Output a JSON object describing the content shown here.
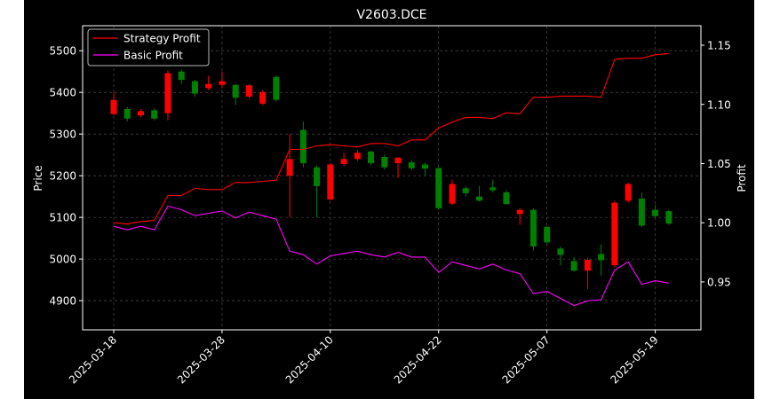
{
  "chart_data": {
    "type": "candlestick+line",
    "title": "V2603.DCE",
    "xlabel": "",
    "ylabel_left": "Price",
    "ylabel_right": "Profit",
    "ylim_left": [
      4830,
      5560
    ],
    "ylim_right": [
      0.9095,
      1.1665
    ],
    "yticks_left": [
      4900,
      5000,
      5100,
      5200,
      5300,
      5400,
      5500
    ],
    "yticks_right": [
      0.95,
      1.0,
      1.05,
      1.1,
      1.15
    ],
    "yticklabels_right": [
      "0.95",
      "1.00",
      "1.05",
      "1.10",
      "1.15"
    ],
    "xtick_labels": [
      {
        "label": "2025-03-18",
        "index": 0
      },
      {
        "label": "2025-03-28",
        "index": 8
      },
      {
        "label": "2025-04-10",
        "index": 16
      },
      {
        "label": "2025-04-22",
        "index": 24
      },
      {
        "label": "2025-05-07",
        "index": 32
      },
      {
        "label": "2025-05-19",
        "index": 40
      }
    ],
    "grid": true,
    "legend_position": "upper-left",
    "colors": {
      "up_candle": "#ff0000",
      "down_candle": "#008000",
      "strategy_line": "#ff0000",
      "basic_line": "#ff00ff",
      "background": "#000000",
      "text": "#ffffff"
    },
    "candles": [
      {
        "i": 0,
        "open": 5348,
        "close": 5382,
        "high": 5400,
        "low": 5345
      },
      {
        "i": 1,
        "open": 5360,
        "close": 5337,
        "high": 5365,
        "low": 5330
      },
      {
        "i": 2,
        "open": 5345,
        "close": 5355,
        "high": 5360,
        "low": 5340
      },
      {
        "i": 3,
        "open": 5357,
        "close": 5337,
        "high": 5362,
        "low": 5333
      },
      {
        "i": 4,
        "open": 5350,
        "close": 5446,
        "high": 5453,
        "low": 5333
      },
      {
        "i": 5,
        "open": 5450,
        "close": 5430,
        "high": 5455,
        "low": 5420
      },
      {
        "i": 6,
        "open": 5427,
        "close": 5397,
        "high": 5430,
        "low": 5390
      },
      {
        "i": 7,
        "open": 5410,
        "close": 5420,
        "high": 5440,
        "low": 5405
      },
      {
        "i": 8,
        "open": 5418,
        "close": 5427,
        "high": 5450,
        "low": 5410
      },
      {
        "i": 9,
        "open": 5418,
        "close": 5387,
        "high": 5420,
        "low": 5370
      },
      {
        "i": 10,
        "open": 5390,
        "close": 5417,
        "high": 5420,
        "low": 5385
      },
      {
        "i": 11,
        "open": 5373,
        "close": 5400,
        "high": 5405,
        "low": 5370
      },
      {
        "i": 12,
        "open": 5437,
        "close": 5382,
        "high": 5440,
        "low": 5378
      },
      {
        "i": 13,
        "open": 5200,
        "close": 5240,
        "high": 5300,
        "low": 5100
      },
      {
        "i": 14,
        "open": 5310,
        "close": 5230,
        "high": 5330,
        "low": 5220
      },
      {
        "i": 15,
        "open": 5220,
        "close": 5175,
        "high": 5225,
        "low": 5100
      },
      {
        "i": 16,
        "open": 5143,
        "close": 5227,
        "high": 5230,
        "low": 5140
      },
      {
        "i": 17,
        "open": 5228,
        "close": 5240,
        "high": 5255,
        "low": 5222
      },
      {
        "i": 18,
        "open": 5240,
        "close": 5255,
        "high": 5262,
        "low": 5235
      },
      {
        "i": 19,
        "open": 5258,
        "close": 5230,
        "high": 5260,
        "low": 5225
      },
      {
        "i": 20,
        "open": 5245,
        "close": 5220,
        "high": 5250,
        "low": 5215
      },
      {
        "i": 21,
        "open": 5230,
        "close": 5243,
        "high": 5245,
        "low": 5195
      },
      {
        "i": 22,
        "open": 5232,
        "close": 5218,
        "high": 5237,
        "low": 5213
      },
      {
        "i": 23,
        "open": 5227,
        "close": 5217,
        "high": 5232,
        "low": 5200
      },
      {
        "i": 24,
        "open": 5218,
        "close": 5122,
        "high": 5222,
        "low": 5118
      },
      {
        "i": 25,
        "open": 5133,
        "close": 5180,
        "high": 5190,
        "low": 5130
      },
      {
        "i": 26,
        "open": 5170,
        "close": 5158,
        "high": 5175,
        "low": 5150
      },
      {
        "i": 27,
        "open": 5150,
        "close": 5140,
        "high": 5175,
        "low": 5138
      },
      {
        "i": 28,
        "open": 5172,
        "close": 5165,
        "high": 5190,
        "low": 5160
      },
      {
        "i": 29,
        "open": 5160,
        "close": 5132,
        "high": 5165,
        "low": 5130
      },
      {
        "i": 30,
        "open": 5108,
        "close": 5118,
        "high": 5122,
        "low": 5082
      },
      {
        "i": 31,
        "open": 5118,
        "close": 5030,
        "high": 5122,
        "low": 5020
      },
      {
        "i": 32,
        "open": 5077,
        "close": 5040,
        "high": 5080,
        "low": 5035
      },
      {
        "i": 33,
        "open": 5025,
        "close": 5010,
        "high": 5030,
        "low": 4985
      },
      {
        "i": 34,
        "open": 4995,
        "close": 4972,
        "high": 5005,
        "low": 4970
      },
      {
        "i": 35,
        "open": 4972,
        "close": 4998,
        "high": 5003,
        "low": 4928
      },
      {
        "i": 36,
        "open": 5012,
        "close": 4997,
        "high": 5035,
        "low": 4960
      },
      {
        "i": 37,
        "open": 4985,
        "close": 5135,
        "high": 5140,
        "low": 4980
      },
      {
        "i": 38,
        "open": 5140,
        "close": 5180,
        "high": 5183,
        "low": 5135
      },
      {
        "i": 39,
        "open": 5145,
        "close": 5080,
        "high": 5160,
        "low": 5077
      },
      {
        "i": 40,
        "open": 5118,
        "close": 5103,
        "high": 5130,
        "low": 5098
      },
      {
        "i": 41,
        "open": 5115,
        "close": 5085,
        "high": 5118,
        "low": 5082
      }
    ],
    "series": [
      {
        "name": "Strategy Profit",
        "values": [
          1.0,
          0.999,
          1.001,
          1.002,
          1.023,
          1.023,
          1.029,
          1.028,
          1.028,
          1.034,
          1.034,
          1.035,
          1.036,
          1.062,
          1.062,
          1.065,
          1.066,
          1.065,
          1.064,
          1.067,
          1.067,
          1.065,
          1.07,
          1.07,
          1.08,
          1.085,
          1.089,
          1.089,
          1.088,
          1.093,
          1.092,
          1.106,
          1.106,
          1.107,
          1.107,
          1.107,
          1.106,
          1.138,
          1.139,
          1.139,
          1.142,
          1.143
        ]
      },
      {
        "name": "Basic Profit",
        "values": [
          0.997,
          0.994,
          0.997,
          0.994,
          1.014,
          1.011,
          1.006,
          1.008,
          1.01,
          1.004,
          1.009,
          1.006,
          1.003,
          0.976,
          0.973,
          0.965,
          0.972,
          0.974,
          0.976,
          0.973,
          0.971,
          0.975,
          0.971,
          0.971,
          0.958,
          0.967,
          0.964,
          0.961,
          0.965,
          0.96,
          0.957,
          0.94,
          0.942,
          0.936,
          0.93,
          0.934,
          0.935,
          0.96,
          0.967,
          0.948,
          0.951,
          0.949
        ]
      }
    ]
  }
}
